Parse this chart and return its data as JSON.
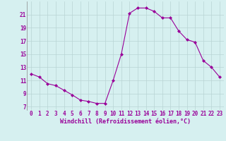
{
  "x": [
    0,
    1,
    2,
    3,
    4,
    5,
    6,
    7,
    8,
    9,
    10,
    11,
    12,
    13,
    14,
    15,
    16,
    17,
    18,
    19,
    20,
    21,
    22,
    23
  ],
  "y": [
    12.0,
    11.5,
    10.5,
    10.2,
    9.5,
    8.8,
    8.0,
    7.8,
    7.5,
    7.5,
    11.0,
    15.0,
    21.2,
    22.0,
    22.0,
    21.5,
    20.5,
    20.5,
    18.5,
    17.2,
    16.8,
    14.0,
    13.0,
    11.5
  ],
  "line_color": "#990099",
  "marker": "D",
  "marker_size": 2,
  "bg_color": "#d6f0f0",
  "grid_color": "#b8d4d4",
  "xlabel": "Windchill (Refroidissement éolien,°C)",
  "tick_color": "#990099",
  "yticks": [
    7,
    9,
    11,
    13,
    15,
    17,
    19,
    21
  ],
  "ylim": [
    6.5,
    23.0
  ],
  "xlim": [
    -0.5,
    23.5
  ],
  "tick_fontsize": 5.5,
  "xlabel_fontsize": 6.0,
  "linewidth": 0.8
}
